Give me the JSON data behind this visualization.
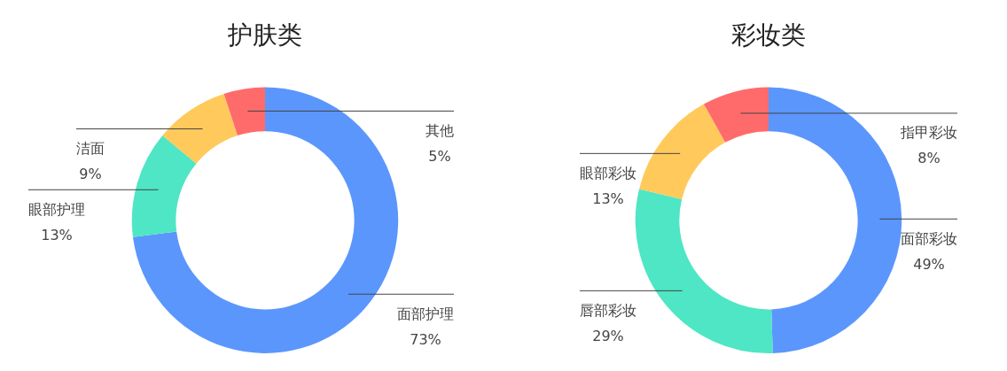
{
  "chart_data": [
    {
      "type": "donut",
      "title": "护肤类",
      "categories": [
        "面部护理",
        "眼部护理",
        "洁面",
        "其他"
      ],
      "values": [
        73,
        13,
        9,
        5
      ],
      "value_labels": [
        "73%",
        "13%",
        "9%",
        "5%"
      ],
      "colors": [
        "#5b96fd",
        "#4ee6c4",
        "#ffca5b",
        "#ff6b6b"
      ],
      "legend": false
    },
    {
      "type": "donut",
      "title": "彩妆类",
      "categories": [
        "面部彩妆",
        "唇部彩妆",
        "眼部彩妆",
        "指甲彩妆"
      ],
      "values": [
        49,
        29,
        13,
        8
      ],
      "value_labels": [
        "49%",
        "29%",
        "13%",
        "8%"
      ],
      "colors": [
        "#5b96fd",
        "#4ee6c4",
        "#ffca5b",
        "#ff6b6b"
      ],
      "legend": false
    }
  ]
}
